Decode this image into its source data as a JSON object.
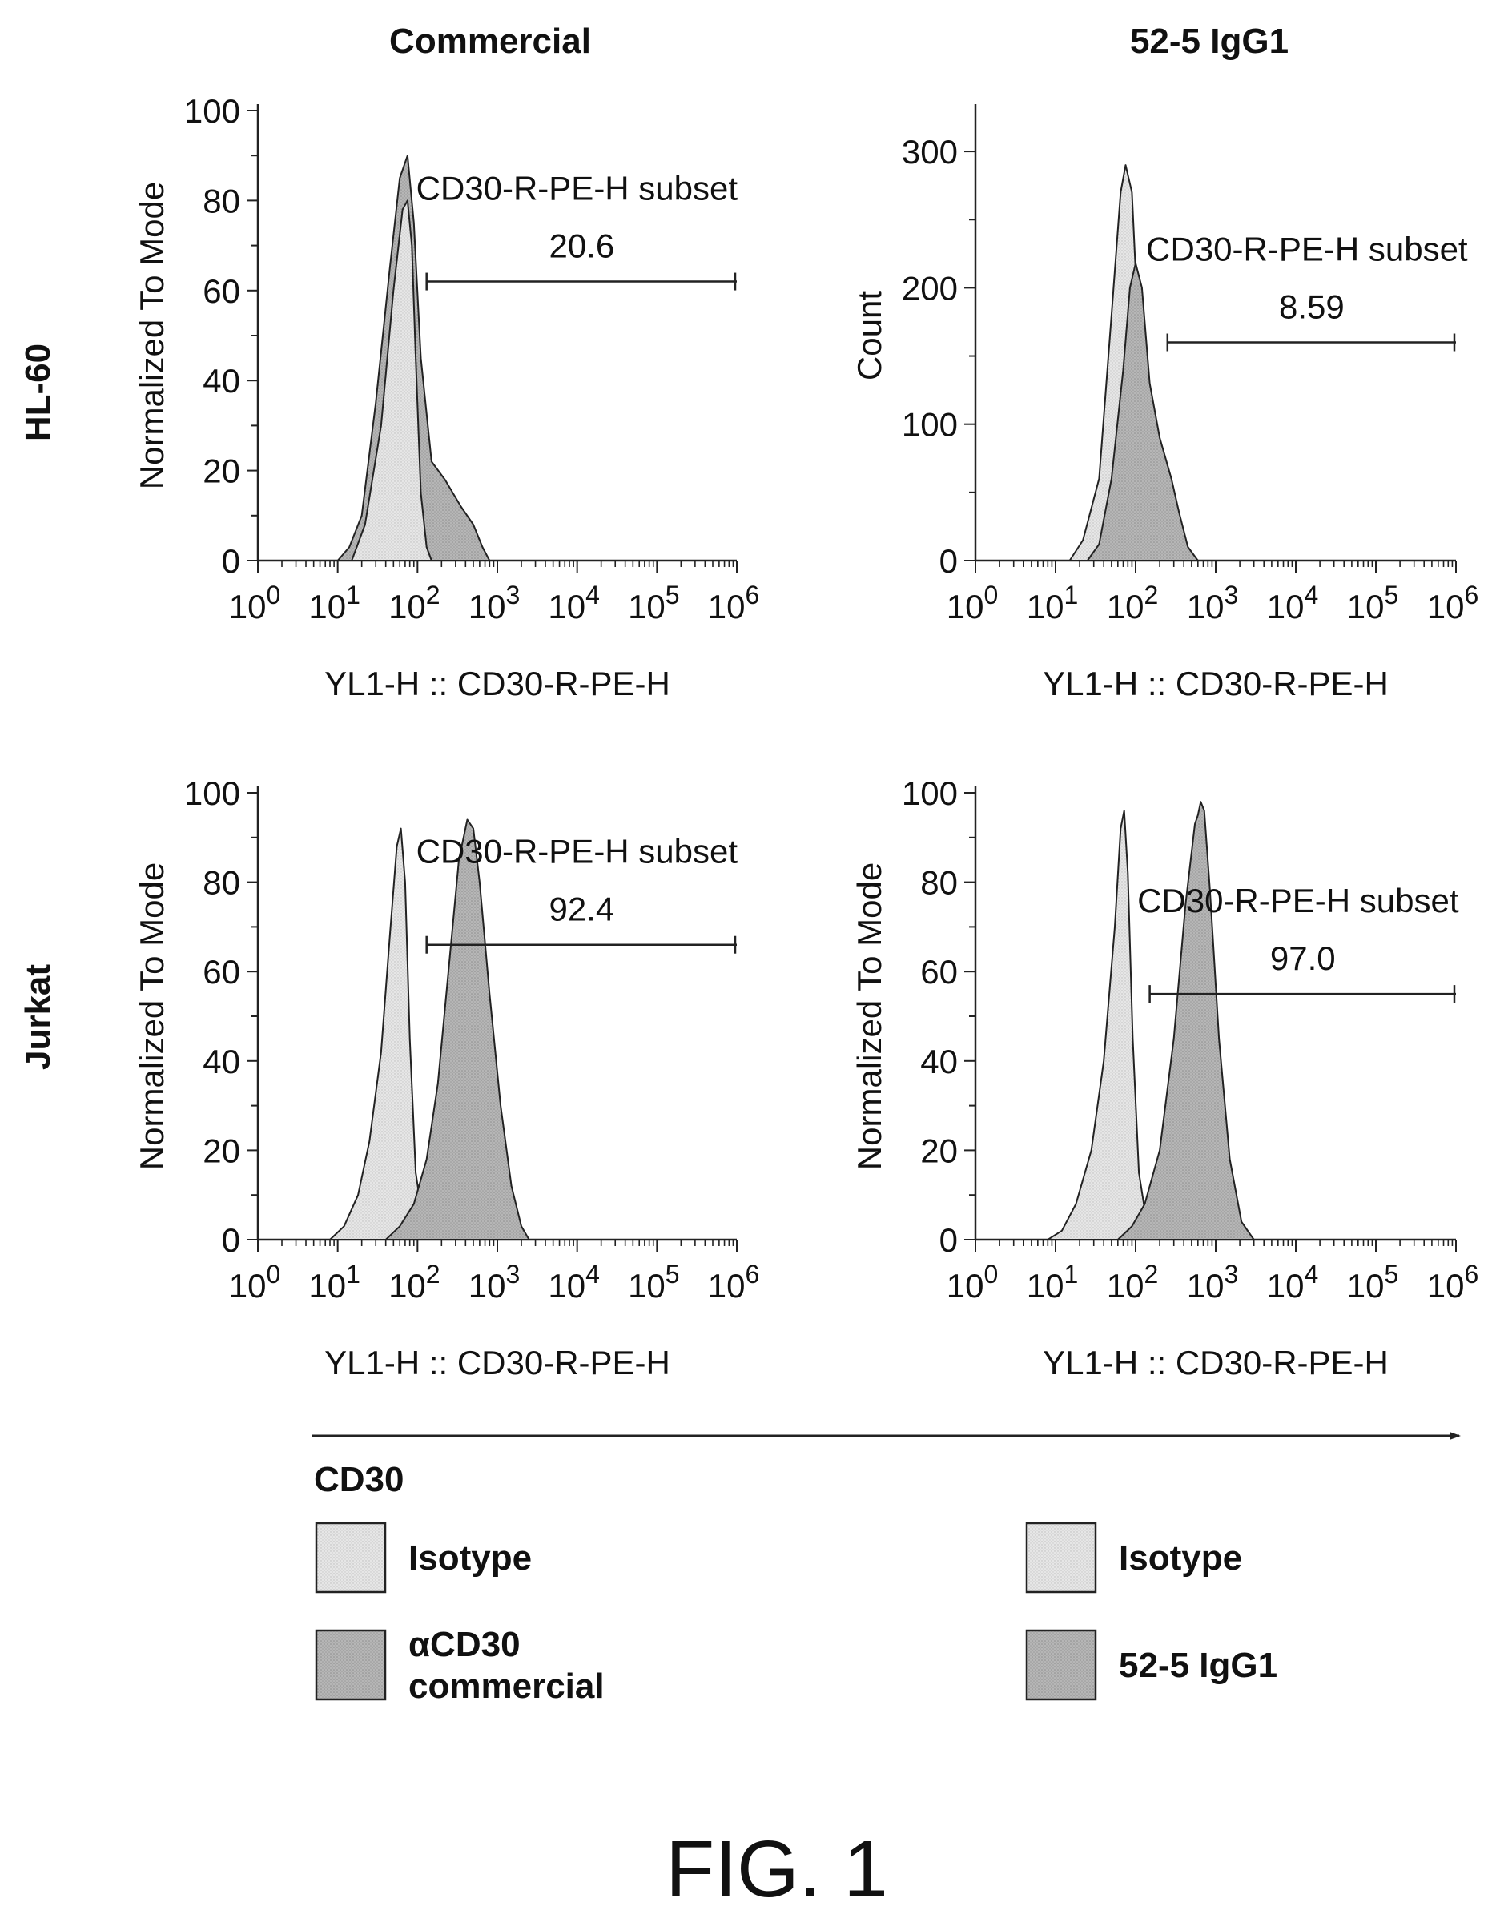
{
  "figure_label": "FIG. 1",
  "column_titles": [
    "Commercial",
    "52-5 IgG1"
  ],
  "row_titles": [
    "HL-60",
    "Jurkat"
  ],
  "axis_arrow_label": "CD30",
  "colors": {
    "isotype": "#e2e2e2",
    "antibody": "#b3b3b3",
    "stroke": "#222222"
  },
  "legend": {
    "left": [
      {
        "label_lines": [
          "Isotype"
        ],
        "kind": "isotype"
      },
      {
        "label_lines": [
          "αCD30",
          "commercial"
        ],
        "kind": "antibody"
      }
    ],
    "right": [
      {
        "label_lines": [
          "Isotype"
        ],
        "kind": "isotype"
      },
      {
        "label_lines": [
          "52-5 IgG1"
        ],
        "kind": "antibody"
      }
    ]
  },
  "chart_data": [
    {
      "type": "area",
      "xscale": "log",
      "xlabel": "YL1-H :: CD30-R-PE-H",
      "ylabel": "Normalized To Mode",
      "xlim": [
        1,
        1000000
      ],
      "ylim": [
        0,
        100
      ],
      "x_ticks": [
        "10",
        "10",
        "10",
        "10",
        "10",
        "10",
        "10"
      ],
      "x_tick_exponents": [
        "0",
        "1",
        "2",
        "3",
        "4",
        "5",
        "6"
      ],
      "y_ticks": [
        0,
        20,
        40,
        60,
        80,
        100
      ],
      "gate": {
        "label": "CD30-R-PE-H subset",
        "value": "20.6",
        "x_range": [
          130,
          1000000
        ],
        "y": 62
      },
      "series": [
        {
          "kind": "antibody",
          "x": [
            10,
            14,
            20,
            30,
            45,
            60,
            75,
            90,
            110,
            150,
            220,
            350,
            500,
            650,
            800
          ],
          "y": [
            0,
            3,
            10,
            35,
            65,
            85,
            90,
            75,
            45,
            22,
            18,
            12,
            8,
            3,
            0
          ]
        },
        {
          "kind": "isotype",
          "x": [
            15,
            22,
            35,
            50,
            65,
            75,
            85,
            95,
            110,
            130,
            150
          ],
          "y": [
            0,
            8,
            30,
            60,
            78,
            80,
            70,
            45,
            15,
            3,
            0
          ]
        }
      ]
    },
    {
      "type": "area",
      "xscale": "log",
      "xlabel": "YL1-H :: CD30-R-PE-H",
      "ylabel": "Count",
      "xlim": [
        1,
        1000000
      ],
      "ylim": [
        0,
        330
      ],
      "x_ticks": [
        "10",
        "10",
        "10",
        "10",
        "10",
        "10",
        "10"
      ],
      "x_tick_exponents": [
        "0",
        "1",
        "2",
        "3",
        "4",
        "5",
        "6"
      ],
      "y_ticks": [
        0,
        100,
        200,
        300
      ],
      "gate": {
        "label": "CD30-R-PE-H subset",
        "value": "8.59",
        "x_range": [
          250,
          1000000
        ],
        "y": 160
      },
      "series": [
        {
          "kind": "isotype",
          "x": [
            15,
            22,
            35,
            50,
            65,
            75,
            90,
            110,
            140,
            180,
            220
          ],
          "y": [
            0,
            15,
            60,
            180,
            270,
            290,
            270,
            160,
            60,
            12,
            0
          ]
        },
        {
          "kind": "antibody",
          "x": [
            25,
            35,
            50,
            70,
            85,
            100,
            120,
            150,
            200,
            280,
            350,
            450,
            600
          ],
          "y": [
            0,
            12,
            60,
            140,
            200,
            218,
            200,
            130,
            90,
            60,
            35,
            10,
            0
          ]
        }
      ]
    },
    {
      "type": "area",
      "xscale": "log",
      "xlabel": "YL1-H :: CD30-R-PE-H",
      "ylabel": "Normalized To Mode",
      "xlim": [
        1,
        1000000
      ],
      "ylim": [
        0,
        100
      ],
      "x_ticks": [
        "10",
        "10",
        "10",
        "10",
        "10",
        "10",
        "10"
      ],
      "x_tick_exponents": [
        "0",
        "1",
        "2",
        "3",
        "4",
        "5",
        "6"
      ],
      "y_ticks": [
        0,
        20,
        40,
        60,
        80,
        100
      ],
      "gate": {
        "label": "CD30-R-PE-H subset",
        "value": "92.4",
        "x_range": [
          130,
          1000000
        ],
        "y": 66
      },
      "series": [
        {
          "kind": "isotype",
          "x": [
            8,
            12,
            18,
            25,
            35,
            45,
            55,
            62,
            70,
            80,
            95,
            120,
            150
          ],
          "y": [
            0,
            3,
            10,
            22,
            42,
            68,
            88,
            92,
            80,
            45,
            15,
            3,
            0
          ]
        },
        {
          "kind": "antibody",
          "x": [
            40,
            60,
            90,
            130,
            180,
            250,
            330,
            420,
            500,
            600,
            800,
            1100,
            1500,
            2000,
            2500
          ],
          "y": [
            0,
            3,
            8,
            18,
            35,
            62,
            85,
            94,
            92,
            80,
            55,
            30,
            12,
            3,
            0
          ]
        }
      ]
    },
    {
      "type": "area",
      "xscale": "log",
      "xlabel": "YL1-H :: CD30-R-PE-H",
      "ylabel": "Normalized To Mode",
      "xlim": [
        1,
        1000000
      ],
      "ylim": [
        0,
        100
      ],
      "x_ticks": [
        "10",
        "10",
        "10",
        "10",
        "10",
        "10",
        "10"
      ],
      "x_tick_exponents": [
        "0",
        "1",
        "2",
        "3",
        "4",
        "5",
        "6"
      ],
      "y_ticks": [
        0,
        20,
        40,
        60,
        80,
        100
      ],
      "gate": {
        "label": "CD30-R-PE-H subset",
        "value": "97.0",
        "x_range": [
          150,
          1000000
        ],
        "y": 55
      },
      "series": [
        {
          "kind": "isotype",
          "x": [
            8,
            12,
            18,
            28,
            40,
            55,
            65,
            72,
            80,
            92,
            110,
            140,
            170
          ],
          "y": [
            0,
            2,
            8,
            20,
            40,
            70,
            92,
            96,
            82,
            45,
            15,
            3,
            0
          ]
        },
        {
          "kind": "antibody",
          "x": [
            60,
            90,
            130,
            200,
            300,
            420,
            550,
            600,
            650,
            720,
            850,
            1100,
            1500,
            2100,
            3000
          ],
          "y": [
            0,
            3,
            8,
            20,
            45,
            75,
            93,
            95,
            98,
            96,
            78,
            45,
            18,
            4,
            0
          ]
        }
      ]
    }
  ]
}
